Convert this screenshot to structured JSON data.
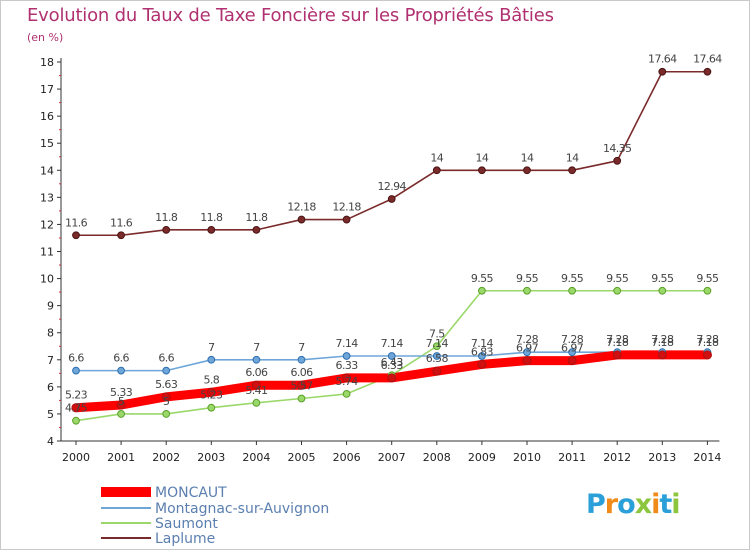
{
  "title": "Evolution du Taux de Taxe Foncière sur les Propriétés Bâties",
  "unit_label": "(en %)",
  "logo": {
    "letters": [
      "P",
      "r",
      "o",
      "x",
      "i",
      "t",
      "i"
    ],
    "colors": [
      "#2a9fd8",
      "#f08a18",
      "#2a9fd8",
      "#8cc63f",
      "#f08a18",
      "#2a9fd8",
      "#8cc63f"
    ]
  },
  "chart_data": {
    "type": "line",
    "title": "Evolution du Taux de Taxe Foncière sur les Propriétés Bâties",
    "ylabel": "(en %)",
    "xlabel": "",
    "x": [
      "2000",
      "2001",
      "2002",
      "2003",
      "2004",
      "2005",
      "2006",
      "2007",
      "2008",
      "2009",
      "2010",
      "2011",
      "2012",
      "2013",
      "2014"
    ],
    "ylim": [
      4,
      18
    ],
    "yticks": [
      4,
      5,
      6,
      7,
      8,
      9,
      10,
      11,
      12,
      13,
      14,
      15,
      16,
      17,
      18
    ],
    "grid": false,
    "legend_position": "bottom-left",
    "series": [
      {
        "name": "MONCAUT",
        "color": "#ff0000",
        "values": [
          5.23,
          5.33,
          5.63,
          5.8,
          6.06,
          6.06,
          6.33,
          6.33,
          6.58,
          6.83,
          6.97,
          6.97,
          7.18,
          7.18,
          7.18
        ],
        "labels": [
          "5.23",
          "5.33",
          "5.63",
          "5.8",
          "6.06",
          "6.06",
          "6.33",
          "6.33",
          "6.58",
          "6.83",
          "6.97",
          "6.97",
          "7.18",
          "7.18",
          "7.18"
        ]
      },
      {
        "name": "Montagnac-sur-Auvignon",
        "color": "#6ea6d8",
        "values": [
          6.6,
          6.6,
          6.6,
          7,
          7,
          7,
          7.14,
          7.14,
          7.14,
          7.14,
          7.28,
          7.28,
          7.28,
          7.28,
          7.28
        ],
        "labels": [
          "6.6",
          "6.6",
          "6.6",
          "7",
          "7",
          "7",
          "7.14",
          "7.14",
          "7.14",
          "7.14",
          "7.28",
          "7.28",
          "7.28",
          "7.28",
          "7.28"
        ]
      },
      {
        "name": "Saumont",
        "color": "#9ad86a",
        "values": [
          4.75,
          5,
          5,
          5.23,
          5.41,
          5.57,
          5.74,
          6.43,
          7.5,
          9.55,
          9.55,
          9.55,
          9.55,
          9.55,
          9.55
        ],
        "labels": [
          "4.75",
          "5",
          "5",
          "5.23",
          "5.41",
          "5.57",
          "5.74",
          "6.43",
          "7.5",
          "9.55",
          "9.55",
          "9.55",
          "9.55",
          "9.55",
          "9.55"
        ]
      },
      {
        "name": "Laplume",
        "color": "#7a2a2a",
        "values": [
          11.6,
          11.6,
          11.8,
          11.8,
          11.8,
          12.18,
          12.18,
          12.94,
          14,
          14,
          14,
          14,
          14.35,
          17.64,
          17.64
        ],
        "labels": [
          "11.6",
          "11.6",
          "11.8",
          "11.8",
          "11.8",
          "12.18",
          "12.18",
          "12.94",
          "14",
          "14",
          "14",
          "14",
          "14.35",
          "17.64",
          "17.64"
        ]
      }
    ]
  }
}
